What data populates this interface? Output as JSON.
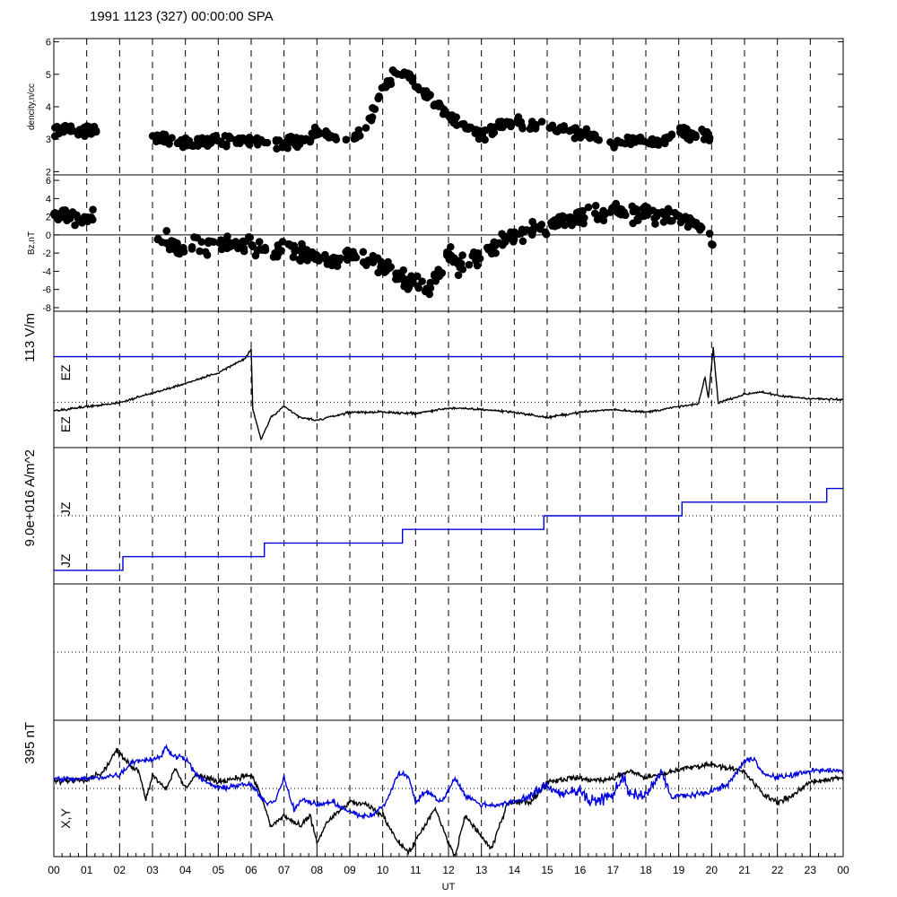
{
  "title": "1991 1123 (327) 00:00:00 SPA",
  "colors": {
    "primary": "#000000",
    "secondary": "#0000dd"
  },
  "chart_data": {
    "type": "multi-panel time series",
    "x": {
      "label": "UT",
      "range_hours": [
        0,
        24
      ],
      "tick_labels": [
        "00",
        "01",
        "02",
        "03",
        "04",
        "05",
        "06",
        "07",
        "08",
        "09",
        "10",
        "11",
        "12",
        "13",
        "14",
        "15",
        "16",
        "17",
        "18",
        "19",
        "20",
        "21",
        "22",
        "23",
        "00"
      ],
      "dashed_hour_gridlines": true
    },
    "panels": [
      {
        "id": "density",
        "type": "scatter",
        "ylabel": "dencity,n/cc",
        "ylim": [
          1.9,
          6.1
        ],
        "yticks": [
          "2",
          "3",
          "4",
          "5",
          "6"
        ],
        "trend": [
          [
            0,
            3.3
          ],
          [
            0.5,
            3.3
          ],
          [
            1.2,
            3.2
          ],
          [
            3,
            3.1
          ],
          [
            4,
            2.9
          ],
          [
            5,
            3.0
          ],
          [
            6.5,
            2.9
          ],
          [
            7.5,
            2.9
          ],
          [
            8,
            3.2
          ],
          [
            9,
            3.0
          ],
          [
            9.5,
            3.3
          ],
          [
            10,
            4.5
          ],
          [
            10.5,
            5.2
          ],
          [
            11,
            4.7
          ],
          [
            11.5,
            4.2
          ],
          [
            12,
            3.7
          ],
          [
            13,
            3.1
          ],
          [
            13.5,
            3.4
          ],
          [
            14,
            3.5
          ],
          [
            15,
            3.4
          ],
          [
            16,
            3.2
          ],
          [
            17,
            2.9
          ],
          [
            18,
            2.9
          ],
          [
            18.5,
            2.9
          ],
          [
            19,
            3.3
          ],
          [
            20,
            3.0
          ]
        ],
        "gaps_hours": [
          [
            1.3,
            2.9
          ],
          [
            16.6,
            16.9
          ]
        ],
        "point_count": 420
      },
      {
        "id": "bz",
        "type": "scatter",
        "ylabel": "Bz,nT",
        "ylim": [
          -8.4,
          6.6
        ],
        "yticks": [
          "-8",
          "-6",
          "-4",
          "-2",
          "0",
          "2",
          "4",
          "6"
        ],
        "zero_line": true,
        "trend": [
          [
            0,
            2.0
          ],
          [
            0.5,
            2.0
          ],
          [
            1,
            1.5
          ],
          [
            1.2,
            2.0
          ],
          [
            3,
            0.0
          ],
          [
            4,
            -1.5
          ],
          [
            4.5,
            -1.0
          ],
          [
            5,
            -1.0
          ],
          [
            6,
            -1.0
          ],
          [
            6.5,
            -2.0
          ],
          [
            7,
            -1.5
          ],
          [
            8,
            -2.5
          ],
          [
            8.5,
            -3.0
          ],
          [
            9,
            -2.0
          ],
          [
            10,
            -3.5
          ],
          [
            11,
            -5.5
          ],
          [
            11.5,
            -5.5
          ],
          [
            12,
            -2.0
          ],
          [
            12.3,
            -3.5
          ],
          [
            13,
            -2.0
          ],
          [
            14,
            0.0
          ],
          [
            15,
            1.0
          ],
          [
            16,
            2.0
          ],
          [
            17,
            2.5
          ],
          [
            18,
            2.5
          ],
          [
            19,
            2.0
          ],
          [
            19.5,
            1.0
          ],
          [
            20,
            -1.0
          ]
        ],
        "gaps_hours": [
          [
            1.3,
            3.0
          ]
        ],
        "point_count": 460
      },
      {
        "id": "ez",
        "type": "line",
        "scale_label": "113 V/m",
        "trace_labels": [
          "EZ",
          "EZ"
        ],
        "ylim": [
          0,
          1
        ],
        "reference_levels": [
          0.333,
          0.667
        ],
        "series": [
          {
            "name": "EZ",
            "color": "#0000dd",
            "points": [
              [
                0,
                0.667
              ],
              [
                0.25,
                0.667
              ],
              [
                0.5,
                0.667
              ],
              [
                24,
                0.667
              ]
            ]
          },
          {
            "name": "EZ",
            "color": "#000000",
            "points": [
              [
                0,
                0.27
              ],
              [
                1,
                0.3
              ],
              [
                2,
                0.33
              ],
              [
                3,
                0.4
              ],
              [
                4,
                0.47
              ],
              [
                5,
                0.55
              ],
              [
                5.8,
                0.65
              ],
              [
                6.0,
                0.72
              ],
              [
                6.05,
                0.28
              ],
              [
                6.3,
                0.06
              ],
              [
                6.6,
                0.22
              ],
              [
                7,
                0.3
              ],
              [
                7.5,
                0.22
              ],
              [
                8,
                0.2
              ],
              [
                9,
                0.26
              ],
              [
                10,
                0.26
              ],
              [
                11,
                0.25
              ],
              [
                12,
                0.29
              ],
              [
                13,
                0.28
              ],
              [
                14,
                0.26
              ],
              [
                15,
                0.22
              ],
              [
                16,
                0.26
              ],
              [
                17,
                0.28
              ],
              [
                18,
                0.26
              ],
              [
                19,
                0.3
              ],
              [
                19.6,
                0.32
              ],
              [
                19.8,
                0.52
              ],
              [
                19.9,
                0.36
              ],
              [
                20.05,
                0.73
              ],
              [
                20.2,
                0.33
              ],
              [
                21,
                0.39
              ],
              [
                21.5,
                0.41
              ],
              [
                22,
                0.38
              ],
              [
                23,
                0.36
              ],
              [
                24,
                0.35
              ]
            ]
          }
        ]
      },
      {
        "id": "jz",
        "type": "step",
        "scale_label": "9.0e+016 A/m^2",
        "trace_labels": [
          "JZ",
          "JZ"
        ],
        "ylim": [
          0,
          1
        ],
        "reference_levels": [
          0.0,
          0.5
        ],
        "series": [
          {
            "name": "JZ",
            "color": "#0000dd",
            "steps": [
              [
                0,
                0.1
              ],
              [
                2.1,
                0.2
              ],
              [
                6.4,
                0.3
              ],
              [
                10.6,
                0.4
              ],
              [
                14.9,
                0.5
              ],
              [
                19.1,
                0.6
              ],
              [
                23.5,
                0.7
              ]
            ]
          }
        ]
      },
      {
        "id": "empty",
        "type": "line",
        "ylim": [
          0,
          1
        ],
        "reference_levels": [
          0.5
        ],
        "series": []
      },
      {
        "id": "xy",
        "type": "line",
        "scale_label": "395 nT",
        "trace_labels": [
          "X,Y"
        ],
        "ylim": [
          0,
          1
        ],
        "reference_levels": [
          0.5
        ],
        "series": [
          {
            "name": "X",
            "color": "#000000",
            "points": [
              [
                0,
                0.55
              ],
              [
                1,
                0.57
              ],
              [
                1.5,
                0.62
              ],
              [
                1.9,
                0.78
              ],
              [
                2.2,
                0.7
              ],
              [
                2.6,
                0.62
              ],
              [
                2.8,
                0.42
              ],
              [
                3.0,
                0.6
              ],
              [
                3.4,
                0.5
              ],
              [
                3.7,
                0.64
              ],
              [
                4.0,
                0.5
              ],
              [
                4.3,
                0.6
              ],
              [
                5,
                0.55
              ],
              [
                6,
                0.6
              ],
              [
                6.3,
                0.45
              ],
              [
                6.6,
                0.22
              ],
              [
                7.0,
                0.3
              ],
              [
                7.5,
                0.22
              ],
              [
                7.8,
                0.3
              ],
              [
                8.0,
                0.1
              ],
              [
                8.3,
                0.25
              ],
              [
                9,
                0.4
              ],
              [
                9.5,
                0.38
              ],
              [
                10,
                0.3
              ],
              [
                10.5,
                0.1
              ],
              [
                10.8,
                0.03
              ],
              [
                11.2,
                0.2
              ],
              [
                11.6,
                0.35
              ],
              [
                12,
                0.1
              ],
              [
                12.2,
                0.0
              ],
              [
                12.5,
                0.3
              ],
              [
                13,
                0.15
              ],
              [
                13.3,
                0.05
              ],
              [
                13.8,
                0.4
              ],
              [
                14.5,
                0.4
              ],
              [
                15.0,
                0.55
              ],
              [
                15.8,
                0.58
              ],
              [
                16.4,
                0.56
              ],
              [
                17,
                0.57
              ],
              [
                17.5,
                0.63
              ],
              [
                18,
                0.58
              ],
              [
                18.5,
                0.6
              ],
              [
                19,
                0.64
              ],
              [
                19.5,
                0.66
              ],
              [
                20,
                0.68
              ],
              [
                21,
                0.62
              ],
              [
                21.6,
                0.45
              ],
              [
                22,
                0.4
              ],
              [
                22.5,
                0.45
              ],
              [
                23,
                0.55
              ],
              [
                24,
                0.58
              ]
            ]
          },
          {
            "name": "Y",
            "color": "#0000dd",
            "points": [
              [
                0,
                0.57
              ],
              [
                1,
                0.57
              ],
              [
                2,
                0.6
              ],
              [
                2.4,
                0.7
              ],
              [
                3.2,
                0.72
              ],
              [
                3.4,
                0.8
              ],
              [
                3.6,
                0.75
              ],
              [
                4.0,
                0.72
              ],
              [
                4.4,
                0.58
              ],
              [
                5,
                0.5
              ],
              [
                5.5,
                0.52
              ],
              [
                6,
                0.53
              ],
              [
                6.4,
                0.4
              ],
              [
                6.7,
                0.4
              ],
              [
                7.0,
                0.58
              ],
              [
                7.3,
                0.35
              ],
              [
                7.6,
                0.42
              ],
              [
                8,
                0.38
              ],
              [
                8.5,
                0.4
              ],
              [
                8.8,
                0.35
              ],
              [
                9.3,
                0.3
              ],
              [
                9.7,
                0.3
              ],
              [
                10.1,
                0.4
              ],
              [
                10.5,
                0.62
              ],
              [
                10.8,
                0.58
              ],
              [
                11,
                0.4
              ],
              [
                11.3,
                0.48
              ],
              [
                11.8,
                0.4
              ],
              [
                12.2,
                0.58
              ],
              [
                12.5,
                0.45
              ],
              [
                13,
                0.38
              ],
              [
                13.5,
                0.38
              ],
              [
                14,
                0.4
              ],
              [
                14.5,
                0.45
              ],
              [
                15,
                0.52
              ],
              [
                15.5,
                0.45
              ],
              [
                16,
                0.5
              ],
              [
                16.3,
                0.4
              ],
              [
                17,
                0.45
              ],
              [
                17.3,
                0.6
              ],
              [
                17.5,
                0.45
              ],
              [
                18,
                0.45
              ],
              [
                18.5,
                0.62
              ],
              [
                18.8,
                0.42
              ],
              [
                19,
                0.45
              ],
              [
                19.5,
                0.45
              ],
              [
                20,
                0.48
              ],
              [
                20.5,
                0.53
              ],
              [
                21.0,
                0.7
              ],
              [
                21.3,
                0.72
              ],
              [
                21.6,
                0.6
              ],
              [
                22,
                0.58
              ],
              [
                22.5,
                0.6
              ],
              [
                23,
                0.63
              ],
              [
                24,
                0.63
              ]
            ]
          }
        ]
      }
    ]
  }
}
